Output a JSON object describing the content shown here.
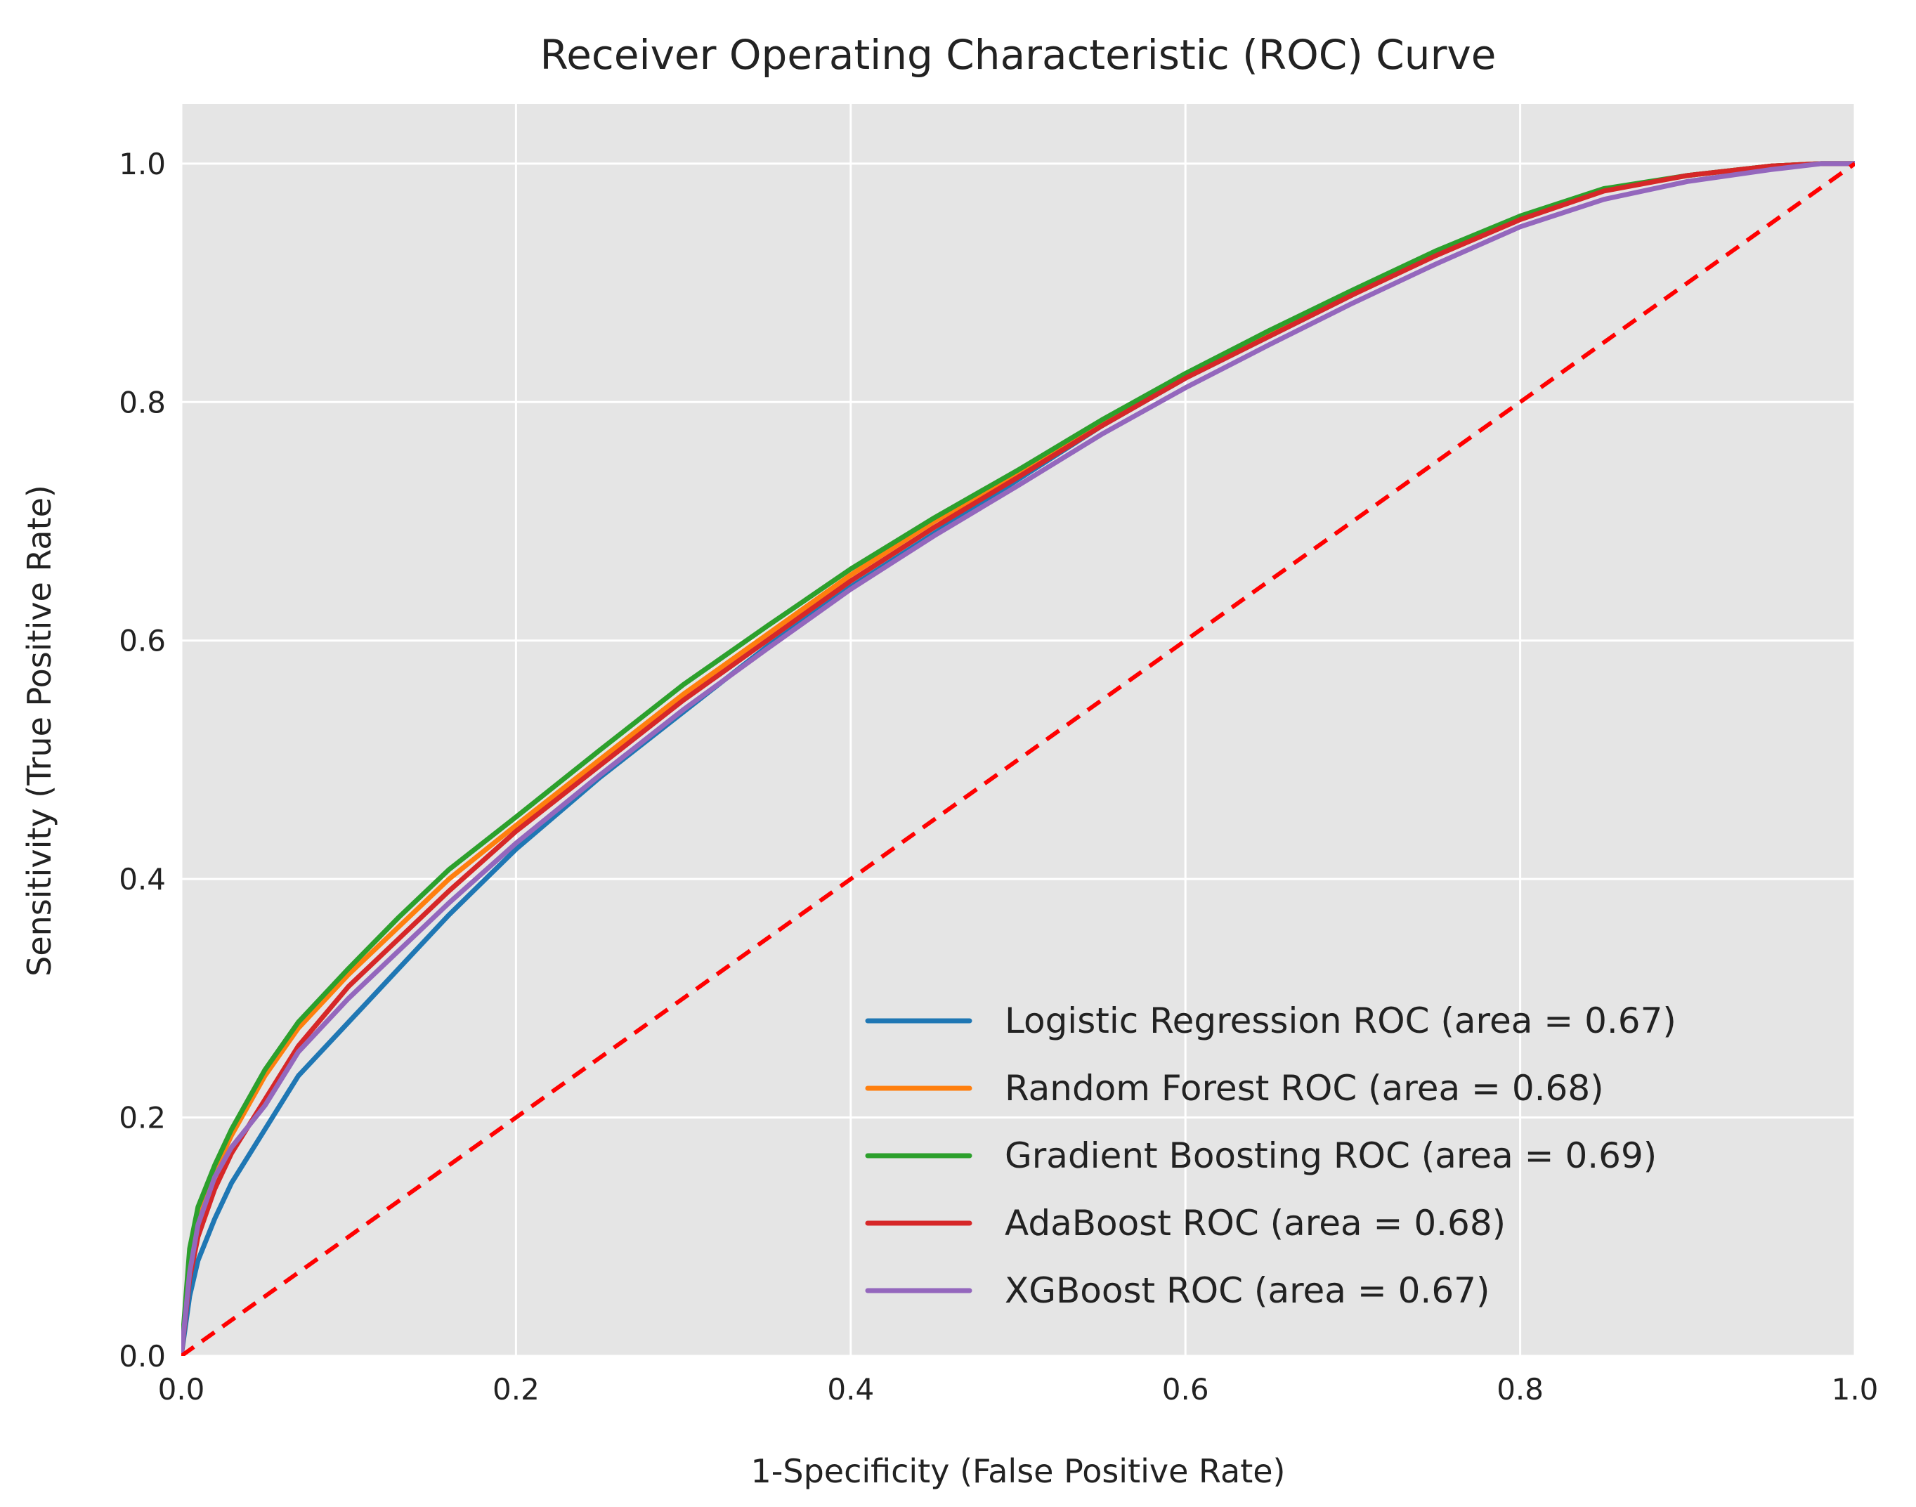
{
  "chart_data": {
    "type": "line",
    "title": "Receiver Operating Characteristic (ROC) Curve",
    "xlabel": "1-Specificity (False Positive Rate)",
    "ylabel": "Sensitivity (True Positive Rate)",
    "xlim": [
      0.0,
      1.0
    ],
    "ylim": [
      0.0,
      1.05
    ],
    "xticks": [
      0.0,
      0.2,
      0.4,
      0.6,
      0.8,
      1.0
    ],
    "yticks": [
      0.0,
      0.2,
      0.4,
      0.6,
      0.8,
      1.0
    ],
    "xtick_labels": [
      "0.0",
      "0.2",
      "0.4",
      "0.6",
      "0.8",
      "1.0"
    ],
    "ytick_labels": [
      "0.0",
      "0.2",
      "0.4",
      "0.6",
      "0.8",
      "1.0"
    ],
    "grid": true,
    "legend_position": "lower right",
    "colors": {
      "plot_background": "#e5e5e5",
      "grid": "#ffffff",
      "reference_line": "#ff0000"
    },
    "reference_line": {
      "style": "dashed",
      "color": "#ff0000",
      "x": [
        0.0,
        1.0
      ],
      "y": [
        0.0,
        1.0
      ]
    },
    "series": [
      {
        "name": "Logistic Regression ROC (area = 0.67)",
        "color": "#1f77b4",
        "x": [
          0.0,
          0.005,
          0.01,
          0.02,
          0.03,
          0.05,
          0.07,
          0.1,
          0.13,
          0.16,
          0.2,
          0.25,
          0.3,
          0.35,
          0.4,
          0.45,
          0.5,
          0.55,
          0.6,
          0.65,
          0.7,
          0.75,
          0.8,
          0.85,
          0.9,
          0.95,
          0.98,
          1.0
        ],
        "y": [
          0.0,
          0.05,
          0.08,
          0.115,
          0.145,
          0.19,
          0.235,
          0.28,
          0.325,
          0.37,
          0.425,
          0.485,
          0.54,
          0.595,
          0.645,
          0.69,
          0.735,
          0.78,
          0.82,
          0.855,
          0.89,
          0.925,
          0.955,
          0.978,
          0.99,
          0.998,
          1.0,
          1.0
        ]
      },
      {
        "name": "Random Forest ROC (area = 0.68)",
        "color": "#ff7f0e",
        "x": [
          0.0,
          0.005,
          0.01,
          0.02,
          0.03,
          0.05,
          0.07,
          0.1,
          0.13,
          0.16,
          0.2,
          0.25,
          0.3,
          0.35,
          0.4,
          0.45,
          0.5,
          0.55,
          0.6,
          0.65,
          0.7,
          0.75,
          0.8,
          0.85,
          0.9,
          0.95,
          0.98,
          1.0
        ],
        "y": [
          0.0,
          0.08,
          0.12,
          0.155,
          0.185,
          0.235,
          0.275,
          0.32,
          0.36,
          0.4,
          0.445,
          0.5,
          0.555,
          0.605,
          0.655,
          0.7,
          0.74,
          0.782,
          0.822,
          0.857,
          0.892,
          0.925,
          0.955,
          0.978,
          0.99,
          0.998,
          1.0,
          1.0
        ]
      },
      {
        "name": "Gradient Boosting ROC (area = 0.69)",
        "color": "#2ca02c",
        "x": [
          0.0,
          0.005,
          0.01,
          0.02,
          0.03,
          0.05,
          0.07,
          0.1,
          0.13,
          0.16,
          0.2,
          0.25,
          0.3,
          0.35,
          0.4,
          0.45,
          0.5,
          0.55,
          0.6,
          0.65,
          0.7,
          0.75,
          0.8,
          0.85,
          0.9,
          0.95,
          0.98,
          1.0
        ],
        "y": [
          0.0,
          0.09,
          0.125,
          0.16,
          0.19,
          0.24,
          0.28,
          0.325,
          0.368,
          0.408,
          0.452,
          0.508,
          0.563,
          0.612,
          0.66,
          0.703,
          0.743,
          0.785,
          0.824,
          0.86,
          0.894,
          0.927,
          0.956,
          0.979,
          0.99,
          0.998,
          1.0,
          1.0
        ]
      },
      {
        "name": "AdaBoost ROC (area = 0.68)",
        "color": "#d62728",
        "x": [
          0.0,
          0.005,
          0.01,
          0.02,
          0.03,
          0.05,
          0.07,
          0.1,
          0.13,
          0.16,
          0.2,
          0.25,
          0.3,
          0.35,
          0.4,
          0.45,
          0.5,
          0.55,
          0.6,
          0.65,
          0.7,
          0.75,
          0.8,
          0.85,
          0.9,
          0.95,
          0.98,
          1.0
        ],
        "y": [
          0.0,
          0.065,
          0.1,
          0.14,
          0.17,
          0.215,
          0.26,
          0.31,
          0.35,
          0.39,
          0.44,
          0.495,
          0.55,
          0.6,
          0.65,
          0.695,
          0.737,
          0.78,
          0.82,
          0.855,
          0.89,
          0.923,
          0.953,
          0.977,
          0.99,
          0.998,
          1.0,
          1.0
        ]
      },
      {
        "name": "XGBoost ROC (area = 0.67)",
        "color": "#9467bd",
        "x": [
          0.0,
          0.005,
          0.01,
          0.02,
          0.03,
          0.05,
          0.07,
          0.1,
          0.13,
          0.16,
          0.2,
          0.25,
          0.3,
          0.35,
          0.4,
          0.45,
          0.5,
          0.55,
          0.6,
          0.65,
          0.7,
          0.75,
          0.8,
          0.85,
          0.9,
          0.95,
          0.98,
          1.0
        ],
        "y": [
          0.0,
          0.07,
          0.11,
          0.15,
          0.175,
          0.21,
          0.255,
          0.3,
          0.34,
          0.38,
          0.43,
          0.487,
          0.542,
          0.593,
          0.643,
          0.688,
          0.73,
          0.773,
          0.812,
          0.848,
          0.883,
          0.916,
          0.947,
          0.97,
          0.985,
          0.995,
          1.0,
          1.0
        ]
      }
    ]
  }
}
